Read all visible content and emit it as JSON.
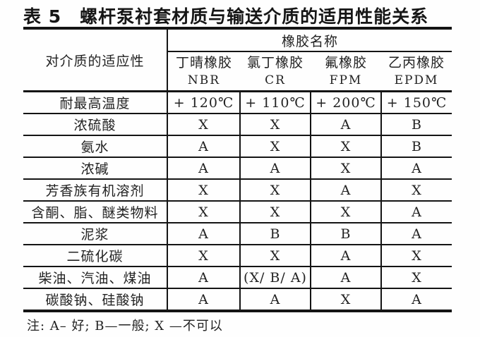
{
  "title": "表 5　螺杆泵衬套材质与输送介质的适用性能关系",
  "table": {
    "corner_header": "对介质的适应性",
    "group_header": "橡胶名称",
    "columns": [
      {
        "name": "丁晴橡胶",
        "abbr": "NBR"
      },
      {
        "name": "氯丁橡胶",
        "abbr": "CR"
      },
      {
        "name": "氟橡胶",
        "abbr": "FPM"
      },
      {
        "name": "乙丙橡胶",
        "abbr": "EPDM"
      }
    ],
    "rows": [
      {
        "label": "耐最高温度",
        "values": [
          "+ 120℃",
          "+ 110℃",
          "+ 200℃",
          "+ 150℃"
        ]
      },
      {
        "label": "浓硫酸",
        "values": [
          "X",
          "X",
          "A",
          "B"
        ]
      },
      {
        "label": "氨水",
        "values": [
          "A",
          "X",
          "X",
          "B"
        ]
      },
      {
        "label": "浓碱",
        "values": [
          "A",
          "A",
          "X",
          "A"
        ]
      },
      {
        "label": "芳香族有机溶剂",
        "values": [
          "X",
          "X",
          "A",
          "X"
        ]
      },
      {
        "label": "含酮、脂、醚类物料",
        "values": [
          "X",
          "X",
          "X",
          "A"
        ]
      },
      {
        "label": "泥浆",
        "values": [
          "A",
          "B",
          "B",
          "A"
        ]
      },
      {
        "label": "二硫化碳",
        "values": [
          "X",
          "X",
          "A",
          "X"
        ]
      },
      {
        "label": "柴油、汽油、煤油",
        "values": [
          "A",
          "(X/ B/ A)",
          "A",
          "X"
        ]
      },
      {
        "label": "碳酸钠、硅酸钠",
        "values": [
          "A",
          "A",
          "X",
          "A"
        ]
      }
    ]
  },
  "note": "注: A– 好; B—一般; X —不可以"
}
